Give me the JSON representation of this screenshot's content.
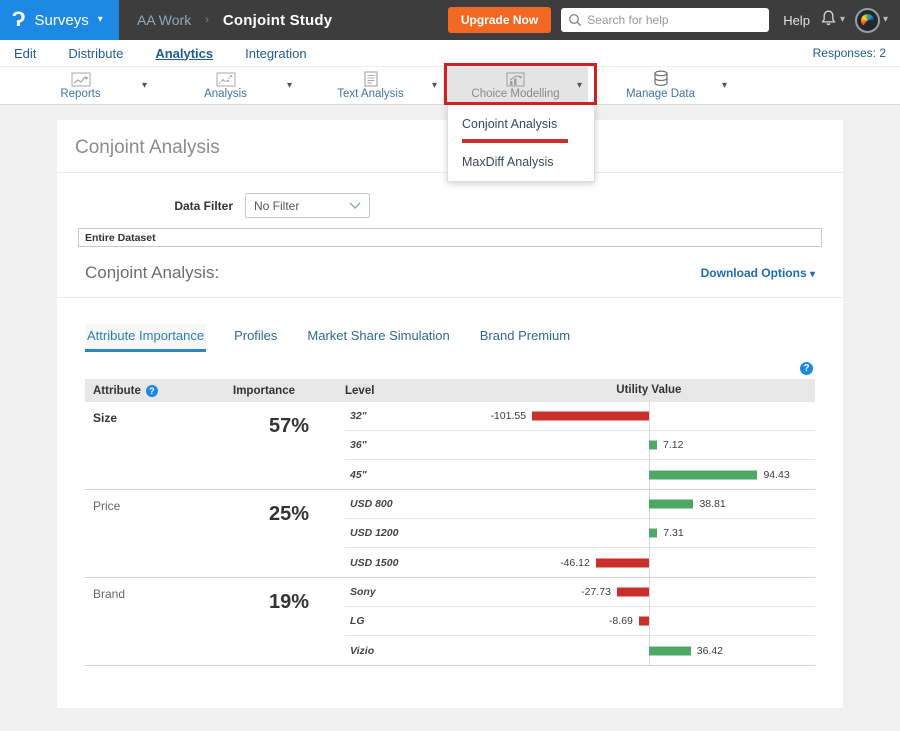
{
  "topbar": {
    "logo_glyph": "Ɂ",
    "product": "Surveys",
    "breadcrumb_folder": "AA Work",
    "breadcrumb_sep": "›",
    "breadcrumb_title": "Conjoint Study",
    "upgrade_label": "Upgrade Now",
    "search_placeholder": "Search for help",
    "help_label": "Help"
  },
  "nav": {
    "items": [
      "Edit",
      "Distribute",
      "Analytics",
      "Integration"
    ],
    "active": "Analytics",
    "responses": "Responses: 2"
  },
  "toolbar": {
    "items": [
      {
        "label": "Reports",
        "icon": "line-chart-icon",
        "active": false
      },
      {
        "label": "Analysis",
        "icon": "scatter-chart-icon",
        "active": false
      },
      {
        "label": "Text Analysis",
        "icon": "text-doc-icon",
        "active": false
      },
      {
        "label": "Choice Modelling",
        "icon": "choice-chart-icon",
        "active": true
      },
      {
        "label": "Manage Data",
        "icon": "database-icon",
        "active": false
      }
    ]
  },
  "dropdown": {
    "items": [
      "Conjoint Analysis",
      "MaxDiff Analysis"
    ],
    "annotated": "Conjoint Analysis"
  },
  "page": {
    "title": "Conjoint Analysis",
    "data_filter_label": "Data Filter",
    "data_filter_value": "No Filter",
    "dataset_label": "Entire Dataset",
    "section_title": "Conjoint Analysis:",
    "download_label": "Download Options",
    "tabs": [
      "Attribute Importance",
      "Profiles",
      "Market Share Simulation",
      "Brand Premium"
    ],
    "active_tab": "Attribute Importance"
  },
  "chart_data": {
    "type": "bar",
    "title": "Attribute Importance",
    "orientation": "horizontal",
    "columns": [
      "Attribute",
      "Importance",
      "Level",
      "Utility Value"
    ],
    "groups": [
      {
        "attribute": "Size",
        "importance": "57%",
        "levels": [
          {
            "label": "32\"",
            "value": -101.55
          },
          {
            "label": "36\"",
            "value": 7.12
          },
          {
            "label": "45\"",
            "value": 94.43
          }
        ]
      },
      {
        "attribute": "Price",
        "importance": "25%",
        "levels": [
          {
            "label": "USD 800",
            "value": 38.81
          },
          {
            "label": "USD 1200",
            "value": 7.31
          },
          {
            "label": "USD 1500",
            "value": -46.12
          }
        ]
      },
      {
        "attribute": "Brand",
        "importance": "19%",
        "levels": [
          {
            "label": "Sony",
            "value": -27.73
          },
          {
            "label": "LG",
            "value": -8.69
          },
          {
            "label": "Vizio",
            "value": 36.42
          }
        ]
      }
    ],
    "xlim": [
      -165,
      145
    ],
    "zero_position_pct": 53.2,
    "positive_color": "#4da867",
    "negative_color": "#c9302c"
  },
  "colors": {
    "brand_blue": "#1e88e5",
    "topbar_bg": "#3d3d3d",
    "upgrade_orange": "#f26822",
    "link_blue": "#1f5c94",
    "annotation_red": "#cc2222"
  }
}
